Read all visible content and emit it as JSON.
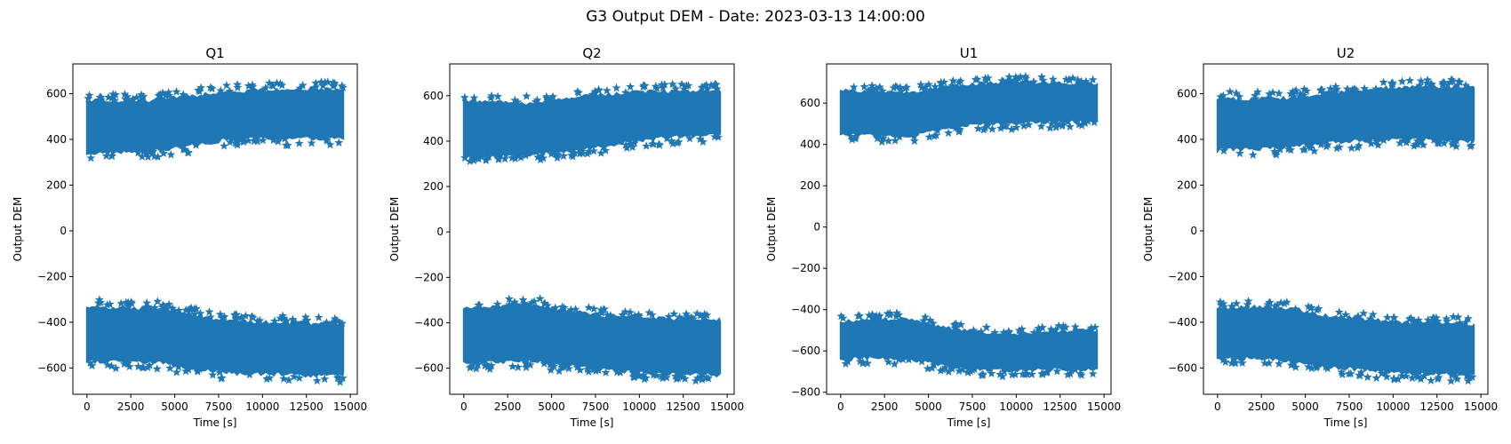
{
  "figure": {
    "suptitle": "G3 Output DEM - Date: 2023-03-13 14:00:00",
    "marker_color": "#1f77b4"
  },
  "chart_data": [
    {
      "type": "scatter",
      "title": "Q1",
      "xlabel": "Time [s]",
      "ylabel": "Output DEM",
      "xlim": [
        -800,
        15400
      ],
      "ylim": [
        -715,
        730
      ],
      "xticks": [
        0,
        2500,
        5000,
        7500,
        10000,
        12500,
        15000
      ],
      "xtick_labels": [
        "0",
        "2500",
        "5000",
        "7500",
        "10000",
        "12500",
        "15000"
      ],
      "yticks": [
        -600,
        -400,
        -200,
        0,
        200,
        400,
        600
      ],
      "ytick_labels": [
        "−600",
        "−400",
        "−200",
        "0",
        "200",
        "400",
        "600"
      ],
      "grid": false,
      "marker": "star",
      "series": [
        {
          "values": [
            {
              "x": 0,
              "low": 320,
              "high": 590
            },
            {
              "x": 2000,
              "low": 325,
              "high": 585
            },
            {
              "x": 4000,
              "low": 330,
              "high": 590
            },
            {
              "x": 6000,
              "low": 355,
              "high": 610
            },
            {
              "x": 8000,
              "low": 380,
              "high": 625
            },
            {
              "x": 10000,
              "low": 385,
              "high": 635
            },
            {
              "x": 12000,
              "low": 385,
              "high": 640
            },
            {
              "x": 14600,
              "low": 385,
              "high": 640
            }
          ]
        },
        {
          "values": [
            {
              "x": 0,
              "low": -590,
              "high": -310
            },
            {
              "x": 2000,
              "low": -590,
              "high": -320
            },
            {
              "x": 4000,
              "low": -595,
              "high": -320
            },
            {
              "x": 6000,
              "low": -620,
              "high": -350
            },
            {
              "x": 8000,
              "low": -640,
              "high": -375
            },
            {
              "x": 10000,
              "low": -645,
              "high": -380
            },
            {
              "x": 12000,
              "low": -650,
              "high": -385
            },
            {
              "x": 14600,
              "low": -650,
              "high": -390
            }
          ]
        }
      ]
    },
    {
      "type": "scatter",
      "title": "Q2",
      "xlabel": "Time [s]",
      "ylabel": "Output DEM",
      "xlim": [
        -800,
        15400
      ],
      "ylim": [
        -715,
        740
      ],
      "xticks": [
        0,
        2500,
        5000,
        7500,
        10000,
        12500,
        15000
      ],
      "xtick_labels": [
        "0",
        "2500",
        "5000",
        "7500",
        "10000",
        "12500",
        "15000"
      ],
      "yticks": [
        -600,
        -400,
        -200,
        0,
        200,
        400,
        600
      ],
      "ytick_labels": [
        "−600",
        "−400",
        "−200",
        "0",
        "200",
        "400",
        "600"
      ],
      "grid": false,
      "marker": "star",
      "series": [
        {
          "values": [
            {
              "x": 0,
              "low": 310,
              "high": 600
            },
            {
              "x": 2000,
              "low": 315,
              "high": 590
            },
            {
              "x": 4000,
              "low": 320,
              "high": 585
            },
            {
              "x": 6000,
              "low": 340,
              "high": 610
            },
            {
              "x": 8000,
              "low": 360,
              "high": 625
            },
            {
              "x": 10000,
              "low": 385,
              "high": 635
            },
            {
              "x": 12000,
              "low": 400,
              "high": 640
            },
            {
              "x": 14600,
              "low": 410,
              "high": 640
            }
          ]
        },
        {
          "values": [
            {
              "x": 0,
              "low": -590,
              "high": -315
            },
            {
              "x": 2000,
              "low": -595,
              "high": -310
            },
            {
              "x": 4000,
              "low": -585,
              "high": -300
            },
            {
              "x": 6000,
              "low": -610,
              "high": -330
            },
            {
              "x": 8000,
              "low": -625,
              "high": -350
            },
            {
              "x": 10000,
              "low": -640,
              "high": -360
            },
            {
              "x": 12000,
              "low": -645,
              "high": -365
            },
            {
              "x": 14600,
              "low": -650,
              "high": -370
            }
          ]
        }
      ]
    },
    {
      "type": "scatter",
      "title": "U1",
      "xlabel": "Time [s]",
      "ylabel": "Output DEM",
      "xlim": [
        -800,
        15400
      ],
      "ylim": [
        -810,
        790
      ],
      "xticks": [
        0,
        2500,
        5000,
        7500,
        10000,
        12500,
        15000
      ],
      "xtick_labels": [
        "0",
        "2500",
        "5000",
        "7500",
        "10000",
        "12500",
        "15000"
      ],
      "yticks": [
        -800,
        -600,
        -400,
        -200,
        0,
        200,
        400,
        600
      ],
      "ytick_labels": [
        "−800",
        "−600",
        "−400",
        "−200",
        "0",
        "200",
        "400",
        "600"
      ],
      "grid": false,
      "marker": "star",
      "series": [
        {
          "values": [
            {
              "x": 0,
              "low": 430,
              "high": 680
            },
            {
              "x": 2000,
              "low": 425,
              "high": 675
            },
            {
              "x": 4000,
              "low": 420,
              "high": 670
            },
            {
              "x": 6000,
              "low": 460,
              "high": 700
            },
            {
              "x": 8000,
              "low": 480,
              "high": 715
            },
            {
              "x": 10000,
              "low": 485,
              "high": 720
            },
            {
              "x": 12000,
              "low": 490,
              "high": 715
            },
            {
              "x": 14600,
              "low": 495,
              "high": 715
            }
          ]
        },
        {
          "values": [
            {
              "x": 0,
              "low": -660,
              "high": -440
            },
            {
              "x": 2000,
              "low": -650,
              "high": -430
            },
            {
              "x": 4000,
              "low": -660,
              "high": -425
            },
            {
              "x": 6000,
              "low": -690,
              "high": -470
            },
            {
              "x": 8000,
              "low": -710,
              "high": -490
            },
            {
              "x": 10000,
              "low": -715,
              "high": -500
            },
            {
              "x": 12000,
              "low": -705,
              "high": -490
            },
            {
              "x": 14600,
              "low": -710,
              "high": -480
            }
          ]
        }
      ]
    },
    {
      "type": "scatter",
      "title": "U2",
      "xlabel": "Time [s]",
      "ylabel": "Output DEM",
      "xlim": [
        -800,
        15400
      ],
      "ylim": [
        -715,
        730
      ],
      "xticks": [
        0,
        2500,
        5000,
        7500,
        10000,
        12500,
        15000
      ],
      "xtick_labels": [
        "0",
        "2500",
        "5000",
        "7500",
        "10000",
        "12500",
        "15000"
      ],
      "yticks": [
        -600,
        -400,
        -200,
        0,
        200,
        400,
        600
      ],
      "ytick_labels": [
        "−600",
        "−400",
        "−200",
        "0",
        "200",
        "400",
        "600"
      ],
      "grid": false,
      "marker": "star",
      "series": [
        {
          "values": [
            {
              "x": 0,
              "low": 335,
              "high": 600
            },
            {
              "x": 2000,
              "low": 340,
              "high": 595
            },
            {
              "x": 4000,
              "low": 345,
              "high": 600
            },
            {
              "x": 6000,
              "low": 365,
              "high": 620
            },
            {
              "x": 8000,
              "low": 375,
              "high": 630
            },
            {
              "x": 10000,
              "low": 380,
              "high": 645
            },
            {
              "x": 12000,
              "low": 380,
              "high": 650
            },
            {
              "x": 14600,
              "low": 375,
              "high": 650
            }
          ]
        },
        {
          "values": [
            {
              "x": 0,
              "low": -580,
              "high": -320
            },
            {
              "x": 2000,
              "low": -575,
              "high": -315
            },
            {
              "x": 4000,
              "low": -590,
              "high": -320
            },
            {
              "x": 6000,
              "low": -610,
              "high": -350
            },
            {
              "x": 8000,
              "low": -625,
              "high": -365
            },
            {
              "x": 10000,
              "low": -640,
              "high": -380
            },
            {
              "x": 12000,
              "low": -645,
              "high": -385
            },
            {
              "x": 14600,
              "low": -650,
              "high": -390
            }
          ]
        }
      ]
    }
  ]
}
